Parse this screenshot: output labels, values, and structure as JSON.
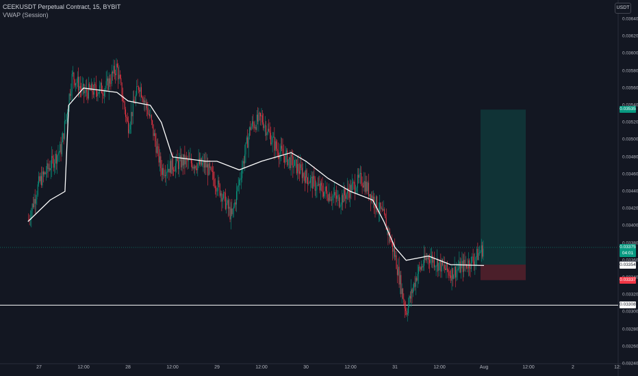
{
  "header": {
    "symbol_line": "CEEKUSDT Perpetual Contract, 15, BYBIT",
    "indicator_line": "VWAP (Session)"
  },
  "toolbar": {
    "currency_button": "USDT"
  },
  "price_scale": {
    "ticks": [
      "0.03640",
      "0.03620",
      "0.03600",
      "0.03580",
      "0.03560",
      "0.03540",
      "0.03520",
      "0.03500",
      "0.03480",
      "0.03460",
      "0.03440",
      "0.03420",
      "0.03400",
      "0.03380",
      "0.03360",
      "0.03340",
      "0.03320",
      "0.03300",
      "0.03280",
      "0.03260",
      "0.03240"
    ]
  },
  "time_scale": {
    "labels": [
      "27",
      "12:00",
      "28",
      "12:00",
      "29",
      "12:00",
      "30",
      "12:00",
      "31",
      "12:00",
      "Aug",
      "12:00",
      "2",
      "12:"
    ]
  },
  "price_tags": {
    "target": {
      "value": "0.03535",
      "color": "#089981"
    },
    "current": {
      "value": "0.03375",
      "countdown": "04:01",
      "color": "#089981"
    },
    "entry": {
      "value": "0.03355",
      "color": "#787b86"
    },
    "vwap": {
      "value": "0.03354",
      "color": "#ffffff"
    },
    "stop": {
      "value": "0.03337",
      "color": "#f23645"
    },
    "horizontal_line": {
      "value": "0.03308",
      "color": "#ffffff"
    }
  },
  "colors": {
    "background": "#131722",
    "up_candle": "#089981",
    "down_candle": "#f23645",
    "vwap_line": "#ffffff",
    "grid": "#1e222d"
  },
  "chart_data": {
    "type": "candlestick",
    "title": "CEEKUSDT Perpetual Contract, 15, BYBIT",
    "indicator": "VWAP (Session)",
    "ylim": [
      0.0324,
      0.0365
    ],
    "grid": false,
    "close_path": [
      {
        "t": "26 21:00",
        "p": 0.03405
      },
      {
        "t": "27 00:00",
        "p": 0.0345
      },
      {
        "t": "27 06:00",
        "p": 0.0349
      },
      {
        "t": "27 09:00",
        "p": 0.03575
      },
      {
        "t": "27 12:00",
        "p": 0.03555
      },
      {
        "t": "27 18:00",
        "p": 0.0356
      },
      {
        "t": "27 21:00",
        "p": 0.03585
      },
      {
        "t": "28 00:00",
        "p": 0.03515
      },
      {
        "t": "28 03:00",
        "p": 0.03565
      },
      {
        "t": "28 06:00",
        "p": 0.03525
      },
      {
        "t": "28 09:00",
        "p": 0.03465
      },
      {
        "t": "28 15:00",
        "p": 0.03475
      },
      {
        "t": "28 21:00",
        "p": 0.0347
      },
      {
        "t": "29 01:00",
        "p": 0.0344
      },
      {
        "t": "29 04:00",
        "p": 0.0341
      },
      {
        "t": "29 09:00",
        "p": 0.03515
      },
      {
        "t": "29 12:00",
        "p": 0.03525
      },
      {
        "t": "29 16:00",
        "p": 0.0349
      },
      {
        "t": "29 21:00",
        "p": 0.0347
      },
      {
        "t": "30 03:00",
        "p": 0.03445
      },
      {
        "t": "30 09:00",
        "p": 0.0343
      },
      {
        "t": "30 15:00",
        "p": 0.03455
      },
      {
        "t": "30 21:00",
        "p": 0.0341
      },
      {
        "t": "31 00:00",
        "p": 0.03365
      },
      {
        "t": "31 03:00",
        "p": 0.033
      },
      {
        "t": "31 06:00",
        "p": 0.03345
      },
      {
        "t": "31 09:00",
        "p": 0.03365
      },
      {
        "t": "31 15:00",
        "p": 0.03345
      },
      {
        "t": "31 21:00",
        "p": 0.0336
      },
      {
        "t": "Aug 00:00",
        "p": 0.03375
      }
    ],
    "vwap_path": [
      {
        "t": "26 21:00",
        "p": 0.03405
      },
      {
        "t": "27 03:00",
        "p": 0.0343
      },
      {
        "t": "27 07:00",
        "p": 0.0344
      },
      {
        "t": "27 08:00",
        "p": 0.0354
      },
      {
        "t": "27 12:00",
        "p": 0.0356
      },
      {
        "t": "27 21:00",
        "p": 0.03555
      },
      {
        "t": "28 00:00",
        "p": 0.03545
      },
      {
        "t": "28 06:00",
        "p": 0.0354
      },
      {
        "t": "28 09:00",
        "p": 0.0352
      },
      {
        "t": "28 12:00",
        "p": 0.0348
      },
      {
        "t": "28 21:00",
        "p": 0.03475
      },
      {
        "t": "29 00:00",
        "p": 0.03475
      },
      {
        "t": "29 06:00",
        "p": 0.03465
      },
      {
        "t": "29 12:00",
        "p": 0.03475
      },
      {
        "t": "29 20:00",
        "p": 0.03485
      },
      {
        "t": "30 00:00",
        "p": 0.03475
      },
      {
        "t": "30 06:00",
        "p": 0.03455
      },
      {
        "t": "30 12:00",
        "p": 0.0344
      },
      {
        "t": "30 18:00",
        "p": 0.0343
      },
      {
        "t": "30 21:00",
        "p": 0.03405
      },
      {
        "t": "31 00:00",
        "p": 0.03375
      },
      {
        "t": "31 03:00",
        "p": 0.0336
      },
      {
        "t": "31 09:00",
        "p": 0.03365
      },
      {
        "t": "31 15:00",
        "p": 0.03355
      },
      {
        "t": "Aug 00:00",
        "p": 0.03354
      }
    ],
    "position": {
      "entry": 0.03355,
      "target": 0.03535,
      "stop": 0.03337
    },
    "horizontal_line": 0.03308
  }
}
